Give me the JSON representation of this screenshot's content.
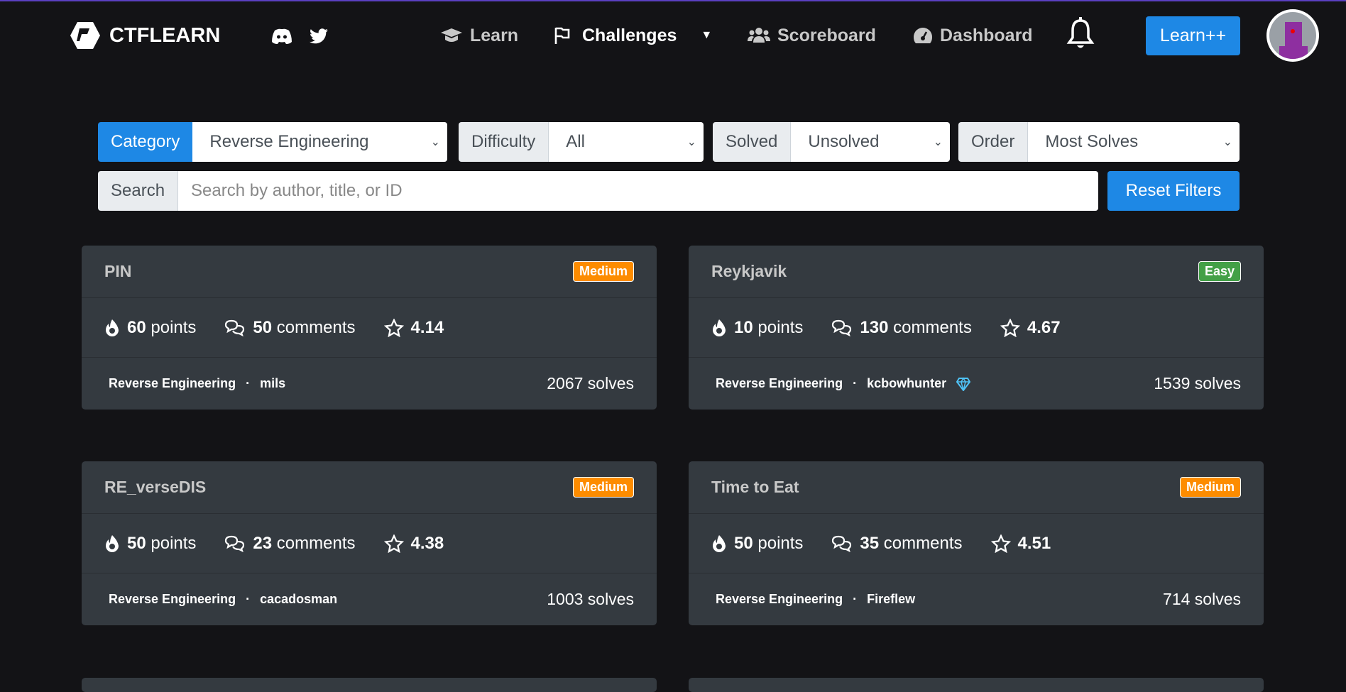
{
  "brand": {
    "name": "CTFLEARN"
  },
  "nav": {
    "learn": "Learn",
    "challenges": "Challenges",
    "scoreboard": "Scoreboard",
    "dashboard": "Dashboard",
    "learnpp": "Learn++"
  },
  "filters": {
    "category_label": "Category",
    "category_value": "Reverse Engineering",
    "difficulty_label": "Difficulty",
    "difficulty_value": "All",
    "solved_label": "Solved",
    "solved_value": "Unsolved",
    "order_label": "Order",
    "order_value": "Most Solves",
    "search_label": "Search",
    "search_placeholder": "Search by author, title, or ID",
    "reset": "Reset Filters"
  },
  "colors": {
    "medium": "#fd8c00",
    "easy": "#43a047",
    "accent": "#1e88e5"
  },
  "cards": [
    {
      "title": "PIN",
      "difficulty": "Medium",
      "points": "60",
      "points_unit": "points",
      "comments": "50",
      "comments_unit": "comments",
      "rating": "4.14",
      "category": "Reverse Engineering",
      "author": "mils",
      "solves": "2067 solves"
    },
    {
      "title": "Reykjavik",
      "difficulty": "Easy",
      "points": "10",
      "points_unit": "points",
      "comments": "130",
      "comments_unit": "comments",
      "rating": "4.67",
      "category": "Reverse Engineering",
      "author": "kcbowhunter",
      "solves": "1539 solves"
    },
    {
      "title": "RE_verseDIS",
      "difficulty": "Medium",
      "points": "50",
      "points_unit": "points",
      "comments": "23",
      "comments_unit": "comments",
      "rating": "4.38",
      "category": "Reverse Engineering",
      "author": "cacadosman",
      "solves": "1003 solves"
    },
    {
      "title": "Time to Eat",
      "difficulty": "Medium",
      "points": "50",
      "points_unit": "points",
      "comments": "35",
      "comments_unit": "comments",
      "rating": "4.51",
      "category": "Reverse Engineering",
      "author": "Fireflew",
      "solves": "714 solves"
    }
  ]
}
